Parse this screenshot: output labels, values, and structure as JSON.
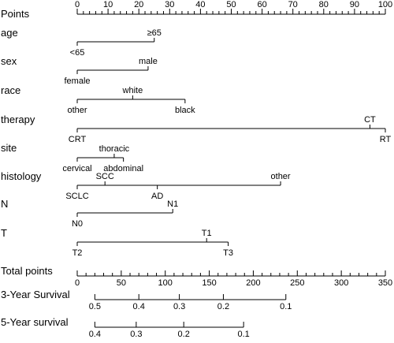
{
  "chart_data": {
    "type": "nomogram",
    "points_scale": {
      "label": "Points",
      "min": 0,
      "max": 100,
      "tick_labels": [
        "0",
        "10",
        "20",
        "30",
        "40",
        "50",
        "60",
        "70",
        "80",
        "90",
        "100"
      ],
      "minor_step": 2
    },
    "variables": [
      {
        "name": "age",
        "levels": [
          {
            "label": "<65",
            "points": 0,
            "position": "below"
          },
          {
            "label": "≥65",
            "points": 25,
            "position": "above"
          }
        ]
      },
      {
        "name": "sex",
        "levels": [
          {
            "label": "female",
            "points": 0,
            "position": "below"
          },
          {
            "label": "male",
            "points": 23,
            "position": "above"
          }
        ]
      },
      {
        "name": "race",
        "levels": [
          {
            "label": "other",
            "points": 0,
            "position": "below"
          },
          {
            "label": "white",
            "points": 18,
            "position": "above"
          },
          {
            "label": "black",
            "points": 35,
            "position": "below"
          }
        ]
      },
      {
        "name": "therapy",
        "levels": [
          {
            "label": "CRT",
            "points": 0,
            "position": "below"
          },
          {
            "label": "CT",
            "points": 95,
            "position": "above"
          },
          {
            "label": "RT",
            "points": 100,
            "position": "below"
          }
        ]
      },
      {
        "name": "site",
        "levels": [
          {
            "label": "cervical",
            "points": 0,
            "position": "below"
          },
          {
            "label": "thoracic",
            "points": 12,
            "position": "above"
          },
          {
            "label": "abdominal",
            "points": 15,
            "position": "below"
          }
        ]
      },
      {
        "name": "histology",
        "levels": [
          {
            "label": "SCLC",
            "points": 0,
            "position": "below"
          },
          {
            "label": "SCC",
            "points": 9,
            "position": "above"
          },
          {
            "label": "AD",
            "points": 26,
            "position": "below"
          },
          {
            "label": "other",
            "points": 66,
            "position": "above"
          }
        ]
      },
      {
        "name": "N",
        "levels": [
          {
            "label": "N0",
            "points": 0,
            "position": "below"
          },
          {
            "label": "N1",
            "points": 31,
            "position": "above"
          }
        ]
      },
      {
        "name": "T",
        "levels": [
          {
            "label": "T2",
            "points": 0,
            "position": "below"
          },
          {
            "label": "T1",
            "points": 42,
            "position": "above"
          },
          {
            "label": "T3",
            "points": 49,
            "position": "below"
          }
        ]
      }
    ],
    "total_points": {
      "label": "Total points",
      "min": 0,
      "max": 350,
      "tick_labels": [
        "0",
        "50",
        "100",
        "150",
        "200",
        "250",
        "300",
        "350"
      ],
      "minor_step": 10
    },
    "survival_scales": [
      {
        "label": "3-Year Survival",
        "ticks": [
          {
            "label": "0.5",
            "total_points": 20
          },
          {
            "label": "0.4",
            "total_points": 70
          },
          {
            "label": "0.3",
            "total_points": 116
          },
          {
            "label": "0.2",
            "total_points": 166
          },
          {
            "label": "0.1",
            "total_points": 237
          }
        ]
      },
      {
        "label": "5-Year survival",
        "ticks": [
          {
            "label": "0.4",
            "total_points": 20
          },
          {
            "label": "0.3",
            "total_points": 67
          },
          {
            "label": "0.2",
            "total_points": 121
          },
          {
            "label": "0.1",
            "total_points": 189
          }
        ]
      }
    ]
  }
}
